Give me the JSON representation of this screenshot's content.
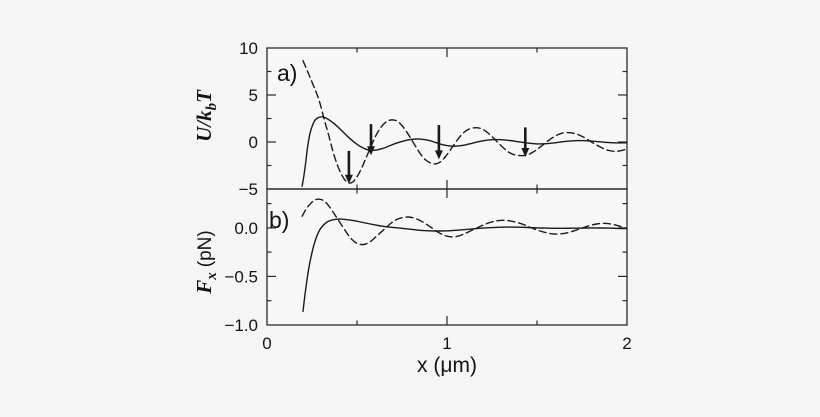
{
  "colors": {
    "background": "#f5f5f5",
    "plot_background": "#f7f7f7",
    "ink": "#1a1a1a"
  },
  "chart_data": {
    "type": "line",
    "xlabel": "x (μm)",
    "xlim": [
      0,
      2
    ],
    "xticks": {
      "major": [
        0,
        1,
        2
      ],
      "labels": [
        "0",
        "1",
        "2"
      ],
      "minor": [
        0.5,
        1.5
      ]
    },
    "legend": "none",
    "panels": [
      {
        "id": "a",
        "label": "a)",
        "ylabel_parts": {
          "pre": "U/k",
          "sub": "b",
          "post": "T"
        },
        "ylim": [
          -5,
          10
        ],
        "yticks": {
          "major": [
            10,
            5,
            0,
            -5
          ],
          "labels": [
            "10",
            "5",
            "0",
            "−5"
          ],
          "minor": [
            7.5,
            2.5,
            -2.5
          ]
        },
        "arrows": [
          {
            "x": 0.455,
            "from": -0.95,
            "to": -4.45
          },
          {
            "x": 0.578,
            "from": 1.9,
            "to": -1.4
          },
          {
            "x": 0.955,
            "from": 1.8,
            "to": -1.85
          },
          {
            "x": 1.435,
            "from": 1.55,
            "to": -1.6
          }
        ],
        "series": [
          {
            "name": "solid",
            "style": "solid",
            "points": [
              [
                0.195,
                -4.7
              ],
              [
                0.205,
                -3.6
              ],
              [
                0.215,
                -2.2
              ],
              [
                0.225,
                -0.6
              ],
              [
                0.24,
                1.0
              ],
              [
                0.26,
                2.1
              ],
              [
                0.28,
                2.55
              ],
              [
                0.305,
                2.68
              ],
              [
                0.33,
                2.52
              ],
              [
                0.37,
                2.0
              ],
              [
                0.41,
                1.3
              ],
              [
                0.45,
                0.55
              ],
              [
                0.49,
                -0.1
              ],
              [
                0.53,
                -0.6
              ],
              [
                0.565,
                -0.85
              ],
              [
                0.6,
                -0.87
              ],
              [
                0.64,
                -0.7
              ],
              [
                0.68,
                -0.42
              ],
              [
                0.72,
                -0.12
              ],
              [
                0.76,
                0.12
              ],
              [
                0.8,
                0.28
              ],
              [
                0.84,
                0.33
              ],
              [
                0.88,
                0.25
              ],
              [
                0.92,
                0.05
              ],
              [
                0.96,
                -0.2
              ],
              [
                1.0,
                -0.38
              ],
              [
                1.04,
                -0.45
              ],
              [
                1.08,
                -0.38
              ],
              [
                1.12,
                -0.22
              ],
              [
                1.16,
                -0.03
              ],
              [
                1.2,
                0.13
              ],
              [
                1.25,
                0.24
              ],
              [
                1.3,
                0.25
              ],
              [
                1.35,
                0.16
              ],
              [
                1.4,
                0.02
              ],
              [
                1.45,
                -0.12
              ],
              [
                1.5,
                -0.2
              ],
              [
                1.55,
                -0.18
              ],
              [
                1.6,
                -0.08
              ],
              [
                1.65,
                0.04
              ],
              [
                1.7,
                0.13
              ],
              [
                1.75,
                0.15
              ],
              [
                1.8,
                0.1
              ],
              [
                1.85,
                0.02
              ],
              [
                1.9,
                -0.06
              ],
              [
                1.95,
                -0.1
              ],
              [
                2.0,
                -0.09
              ]
            ]
          },
          {
            "name": "dashed",
            "style": "dashed",
            "points": [
              [
                0.2,
                8.65
              ],
              [
                0.23,
                7.3
              ],
              [
                0.26,
                5.9
              ],
              [
                0.29,
                4.4
              ],
              [
                0.315,
                2.6
              ],
              [
                0.34,
                0.9
              ],
              [
                0.365,
                -0.9
              ],
              [
                0.39,
                -2.4
              ],
              [
                0.415,
                -3.5
              ],
              [
                0.44,
                -4.2
              ],
              [
                0.46,
                -4.37
              ],
              [
                0.48,
                -4.2
              ],
              [
                0.5,
                -3.7
              ],
              [
                0.525,
                -2.8
              ],
              [
                0.55,
                -1.7
              ],
              [
                0.575,
                -0.6
              ],
              [
                0.6,
                0.5
              ],
              [
                0.625,
                1.35
              ],
              [
                0.65,
                1.95
              ],
              [
                0.675,
                2.28
              ],
              [
                0.7,
                2.35
              ],
              [
                0.725,
                2.2
              ],
              [
                0.75,
                1.75
              ],
              [
                0.775,
                1.1
              ],
              [
                0.8,
                0.35
              ],
              [
                0.825,
                -0.45
              ],
              [
                0.85,
                -1.2
              ],
              [
                0.875,
                -1.8
              ],
              [
                0.9,
                -2.15
              ],
              [
                0.92,
                -2.3
              ],
              [
                0.94,
                -2.32
              ],
              [
                0.965,
                -2.1
              ],
              [
                0.99,
                -1.6
              ],
              [
                1.015,
                -0.95
              ],
              [
                1.04,
                -0.25
              ],
              [
                1.065,
                0.4
              ],
              [
                1.09,
                0.95
              ],
              [
                1.115,
                1.3
              ],
              [
                1.14,
                1.48
              ],
              [
                1.165,
                1.52
              ],
              [
                1.19,
                1.42
              ],
              [
                1.215,
                1.15
              ],
              [
                1.24,
                0.75
              ],
              [
                1.265,
                0.3
              ],
              [
                1.29,
                -0.2
              ],
              [
                1.315,
                -0.65
              ],
              [
                1.34,
                -1.05
              ],
              [
                1.365,
                -1.3
              ],
              [
                1.39,
                -1.42
              ],
              [
                1.42,
                -1.45
              ],
              [
                1.45,
                -1.35
              ],
              [
                1.48,
                -1.05
              ],
              [
                1.51,
                -0.65
              ],
              [
                1.54,
                -0.2
              ],
              [
                1.57,
                0.25
              ],
              [
                1.6,
                0.62
              ],
              [
                1.63,
                0.88
              ],
              [
                1.66,
                1.0
              ],
              [
                1.69,
                0.98
              ],
              [
                1.72,
                0.85
              ],
              [
                1.75,
                0.6
              ],
              [
                1.78,
                0.28
              ],
              [
                1.81,
                -0.08
              ],
              [
                1.84,
                -0.42
              ],
              [
                1.87,
                -0.7
              ],
              [
                1.9,
                -0.9
              ],
              [
                1.93,
                -0.99
              ],
              [
                1.96,
                -0.95
              ],
              [
                2.0,
                -0.75
              ]
            ]
          }
        ]
      },
      {
        "id": "b",
        "label": "b)",
        "ylabel_parts": {
          "pre": "F",
          "sub": "x",
          "post": "(pN)"
        },
        "ylim": [
          -1.0,
          0.4
        ],
        "yticks": {
          "major": [
            0.0,
            -0.5,
            -1.0
          ],
          "labels": [
            "0.0",
            "−0.5",
            "−1.0"
          ],
          "minor": [
            0.25,
            -0.25,
            -0.75
          ]
        },
        "arrows": [],
        "series": [
          {
            "name": "solid",
            "style": "solid",
            "points": [
              [
                0.2,
                -0.86
              ],
              [
                0.21,
                -0.7
              ],
              [
                0.225,
                -0.5
              ],
              [
                0.24,
                -0.34
              ],
              [
                0.26,
                -0.18
              ],
              [
                0.28,
                -0.07
              ],
              [
                0.3,
                0.0
              ],
              [
                0.33,
                0.055
              ],
              [
                0.36,
                0.08
              ],
              [
                0.4,
                0.09
              ],
              [
                0.44,
                0.085
              ],
              [
                0.48,
                0.075
              ],
              [
                0.52,
                0.06
              ],
              [
                0.56,
                0.045
              ],
              [
                0.6,
                0.03
              ],
              [
                0.65,
                0.015
              ],
              [
                0.7,
                0.005
              ],
              [
                0.75,
                -0.005
              ],
              [
                0.8,
                -0.015
              ],
              [
                0.85,
                -0.025
              ],
              [
                0.9,
                -0.03
              ],
              [
                0.95,
                -0.032
              ],
              [
                1.0,
                -0.03
              ],
              [
                1.05,
                -0.025
              ],
              [
                1.1,
                -0.018
              ],
              [
                1.15,
                -0.01
              ],
              [
                1.2,
                -0.003
              ],
              [
                1.25,
                0.003
              ],
              [
                1.3,
                0.007
              ],
              [
                1.35,
                0.008
              ],
              [
                1.4,
                0.007
              ],
              [
                1.45,
                0.004
              ],
              [
                1.5,
                0.0
              ],
              [
                1.55,
                -0.003
              ],
              [
                1.6,
                -0.005
              ],
              [
                1.65,
                -0.005
              ],
              [
                1.7,
                -0.004
              ],
              [
                1.75,
                -0.002
              ],
              [
                1.8,
                0.0
              ],
              [
                1.85,
                -0.001
              ],
              [
                1.9,
                -0.003
              ],
              [
                1.95,
                -0.006
              ],
              [
                2.0,
                -0.008
              ]
            ]
          },
          {
            "name": "dashed",
            "style": "dashed",
            "points": [
              [
                0.195,
                0.12
              ],
              [
                0.21,
                0.17
              ],
              [
                0.23,
                0.225
              ],
              [
                0.25,
                0.265
              ],
              [
                0.27,
                0.29
              ],
              [
                0.29,
                0.295
              ],
              [
                0.31,
                0.285
              ],
              [
                0.33,
                0.255
              ],
              [
                0.35,
                0.21
              ],
              [
                0.375,
                0.14
              ],
              [
                0.4,
                0.07
              ],
              [
                0.425,
                0.0
              ],
              [
                0.45,
                -0.07
              ],
              [
                0.475,
                -0.125
              ],
              [
                0.5,
                -0.16
              ],
              [
                0.525,
                -0.172
              ],
              [
                0.55,
                -0.165
              ],
              [
                0.575,
                -0.14
              ],
              [
                0.6,
                -0.1
              ],
              [
                0.63,
                -0.05
              ],
              [
                0.66,
                0.0
              ],
              [
                0.69,
                0.05
              ],
              [
                0.72,
                0.085
              ],
              [
                0.75,
                0.105
              ],
              [
                0.78,
                0.112
              ],
              [
                0.81,
                0.105
              ],
              [
                0.84,
                0.085
              ],
              [
                0.87,
                0.055
              ],
              [
                0.9,
                0.02
              ],
              [
                0.93,
                -0.02
              ],
              [
                0.96,
                -0.055
              ],
              [
                0.99,
                -0.08
              ],
              [
                1.02,
                -0.092
              ],
              [
                1.05,
                -0.09
              ],
              [
                1.08,
                -0.075
              ],
              [
                1.11,
                -0.05
              ],
              [
                1.15,
                -0.015
              ],
              [
                1.19,
                0.02
              ],
              [
                1.23,
                0.05
              ],
              [
                1.27,
                0.07
              ],
              [
                1.31,
                0.078
              ],
              [
                1.35,
                0.072
              ],
              [
                1.39,
                0.055
              ],
              [
                1.43,
                0.03
              ],
              [
                1.47,
                0.0
              ],
              [
                1.51,
                -0.028
              ],
              [
                1.55,
                -0.05
              ],
              [
                1.59,
                -0.062
              ],
              [
                1.63,
                -0.062
              ],
              [
                1.67,
                -0.05
              ],
              [
                1.71,
                -0.028
              ],
              [
                1.75,
                -0.002
              ],
              [
                1.79,
                0.022
              ],
              [
                1.83,
                0.04
              ],
              [
                1.87,
                0.047
              ],
              [
                1.91,
                0.04
              ],
              [
                1.95,
                0.022
              ],
              [
                2.0,
                -0.01
              ]
            ]
          }
        ]
      }
    ]
  }
}
